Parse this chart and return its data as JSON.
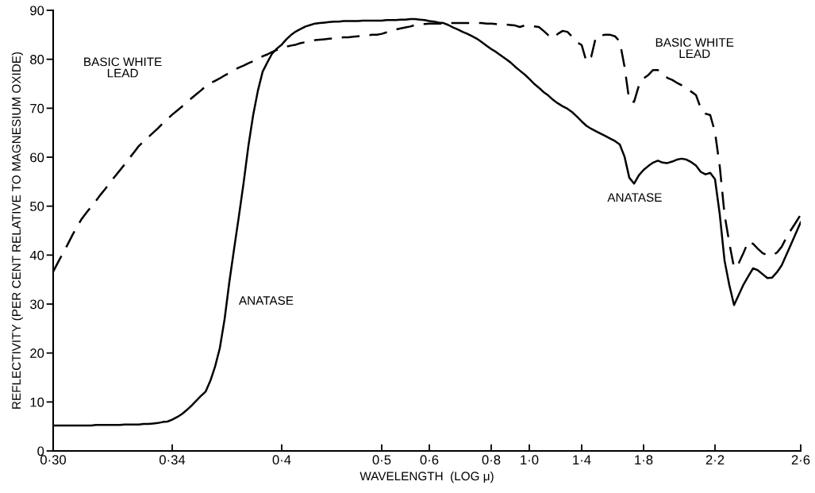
{
  "chart_data": {
    "type": "line",
    "xlabel": "WAVELENGTH  (LOG μ)",
    "ylabel": "REFLECTIVITY (PER CENT RELATIVE TO MAGNESIUM OXIDE)",
    "categories": [
      "0·30",
      null,
      null,
      null,
      null,
      null,
      null,
      null,
      null,
      null,
      null,
      null,
      null,
      null,
      null,
      null,
      null,
      null,
      null,
      null,
      null,
      null,
      null,
      null,
      null,
      "0·34",
      null,
      null,
      null,
      null,
      null,
      null,
      null,
      null,
      null,
      null,
      null,
      null,
      null,
      null,
      null,
      null,
      null,
      null,
      null,
      null,
      null,
      null,
      "0·4",
      null,
      null,
      null,
      null,
      null,
      null,
      null,
      null,
      null,
      null,
      null,
      null,
      null,
      null,
      null,
      null,
      null,
      null,
      null,
      null,
      "0·5",
      null,
      null,
      null,
      null,
      null,
      null,
      null,
      null,
      null,
      "0·6",
      null,
      null,
      null,
      null,
      null,
      null,
      null,
      null,
      null,
      null,
      null,
      null,
      "0·8",
      null,
      null,
      null,
      null,
      null,
      null,
      null,
      "1·0",
      null,
      null,
      null,
      null,
      null,
      null,
      null,
      null,
      null,
      null,
      "1·4",
      null,
      null,
      null,
      null,
      null,
      null,
      null,
      null,
      null,
      null,
      null,
      null,
      "1·8",
      null,
      null,
      null,
      null,
      null,
      null,
      null,
      null,
      null,
      null,
      null,
      null,
      null,
      null,
      "2·2",
      null,
      null,
      null,
      null,
      null,
      null,
      null,
      null,
      null,
      null,
      null,
      null,
      null,
      null,
      null,
      null,
      null,
      "2·6"
    ],
    "ylim": [
      0,
      90
    ],
    "yticks": [
      0,
      10,
      20,
      30,
      40,
      50,
      60,
      70,
      80,
      90
    ],
    "grid": false,
    "legend": false,
    "marker": "none",
    "series": [
      {
        "color": "#000000",
        "line_style": "solid",
        "values": [
          5.2,
          5.2,
          5.2,
          5.2,
          5.2,
          5.2,
          5.2,
          5.2,
          5.2,
          5.3,
          5.3,
          5.3,
          5.3,
          5.3,
          5.3,
          5.4,
          5.4,
          5.4,
          5.4,
          5.5,
          5.5,
          5.6,
          5.7,
          5.9,
          6.0,
          6.4,
          6.9,
          7.5,
          8.3,
          9.2,
          10.2,
          11.2,
          12.1,
          14.3,
          17.2,
          21.0,
          26.9,
          34.5,
          41.3,
          47.9,
          54.8,
          62.3,
          68.6,
          73.6,
          77.5,
          79.4,
          81.2,
          82.2,
          83.0,
          84.1,
          85.0,
          85.7,
          86.2,
          86.7,
          87.0,
          87.3,
          87.4,
          87.5,
          87.6,
          87.7,
          87.7,
          87.8,
          87.8,
          87.8,
          87.8,
          87.9,
          87.9,
          87.9,
          87.9,
          87.9,
          88.0,
          88.0,
          88.0,
          88.1,
          88.1,
          88.2,
          88.2,
          88.1,
          88.0,
          87.8,
          87.7,
          87.5,
          87.4,
          87.0,
          86.5,
          86.1,
          85.6,
          85.2,
          84.7,
          84.2,
          83.5,
          82.8,
          82.1,
          81.5,
          80.8,
          80.1,
          79.4,
          78.5,
          77.7,
          76.9,
          76.0,
          75.0,
          74.2,
          73.3,
          72.6,
          71.7,
          71.0,
          70.4,
          69.9,
          69.2,
          68.3,
          67.3,
          66.4,
          65.8,
          65.3,
          64.8,
          64.3,
          63.8,
          63.3,
          62.6,
          60.1,
          55.8,
          54.6,
          56.3,
          57.4,
          58.2,
          58.9,
          59.3,
          58.9,
          58.8,
          59.1,
          59.5,
          59.7,
          59.5,
          59.0,
          58.3,
          57.0,
          56.5,
          56.8,
          55.5,
          48.3,
          38.9,
          33.9,
          29.8,
          31.9,
          34.0,
          35.7,
          37.3,
          36.9,
          36.1,
          35.3,
          35.4,
          36.5,
          37.9,
          40.1,
          42.3,
          44.5,
          46.7
        ]
      },
      {
        "color": "#000000",
        "line_style": "dashed",
        "values": [
          36.6,
          38.5,
          40.3,
          42.1,
          44.0,
          45.8,
          47.4,
          48.7,
          49.9,
          51.1,
          52.4,
          53.6,
          54.9,
          56.1,
          57.3,
          58.5,
          59.8,
          61.0,
          62.3,
          63.2,
          64.1,
          65.0,
          65.9,
          66.9,
          67.8,
          68.7,
          69.5,
          70.3,
          71.2,
          72.0,
          72.8,
          73.6,
          74.5,
          75.1,
          75.6,
          76.1,
          76.7,
          77.2,
          77.8,
          78.3,
          78.7,
          79.2,
          79.6,
          80.1,
          80.6,
          81.0,
          81.5,
          81.9,
          82.4,
          82.6,
          82.8,
          83.0,
          83.3,
          83.5,
          83.7,
          83.9,
          84.0,
          84.1,
          84.2,
          84.3,
          84.4,
          84.5,
          84.5,
          84.6,
          84.7,
          84.8,
          84.9,
          85.0,
          85.0,
          85.2,
          85.5,
          85.8,
          86.1,
          86.3,
          86.5,
          86.7,
          87.0,
          87.2,
          87.2,
          87.3,
          87.3,
          87.3,
          87.3,
          87.4,
          87.4,
          87.4,
          87.4,
          87.4,
          87.4,
          87.4,
          87.4,
          87.3,
          87.3,
          87.2,
          87.1,
          87.1,
          87.0,
          86.9,
          86.6,
          86.9,
          86.8,
          86.7,
          86.6,
          85.8,
          84.9,
          84.3,
          85.2,
          85.8,
          85.6,
          84.6,
          83.5,
          82.9,
          79.5,
          80.5,
          84.6,
          84.9,
          85.0,
          85.0,
          84.7,
          83.6,
          78.5,
          71.5,
          71.3,
          74.6,
          76.1,
          76.8,
          77.8,
          77.8,
          76.9,
          76.2,
          75.8,
          75.2,
          74.7,
          74.1,
          73.4,
          72.7,
          70.0,
          68.9,
          68.6,
          65.1,
          58.1,
          48.3,
          42.5,
          37.4,
          38.4,
          40.5,
          42.8,
          42.3,
          41.3,
          40.4,
          40.0,
          40.0,
          40.5,
          41.7,
          43.6,
          45.2,
          46.7,
          48.3
        ]
      }
    ],
    "annotations": [
      "BASIC WHITE\nLEAD",
      "ANATASE",
      "BASIC WHITE\nLEAD",
      "ANATASE"
    ]
  }
}
